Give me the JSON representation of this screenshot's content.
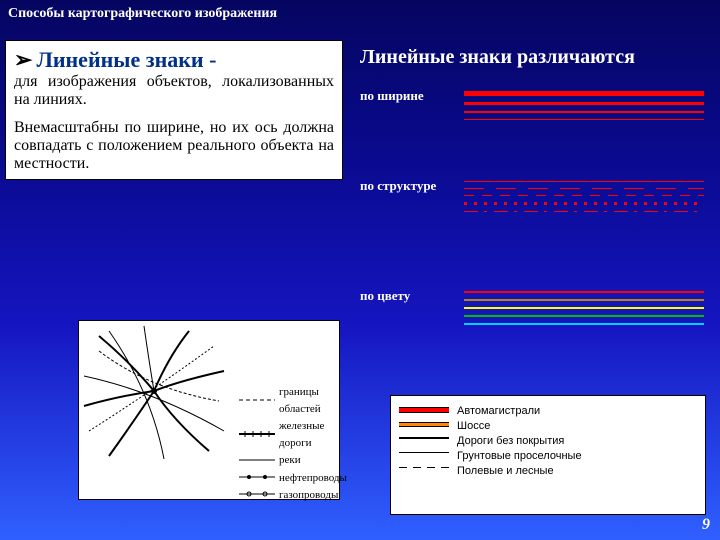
{
  "title": "Способы  картографического изображения",
  "left": {
    "bullet": "➢",
    "heading": "Линейные знаки -",
    "para1": "для изображения объектов, локализованных на линиях.",
    "para2": "Внемасштабны по ширине, но их ось должна совпадать с положением реального объекта на местности."
  },
  "right": {
    "title": "Линейные знаки различаются",
    "groups": {
      "width": {
        "label": "по ширине",
        "lines": [
          {
            "h": 5,
            "bg": "#ff0000",
            "style": "solid"
          },
          {
            "h": 3,
            "bg": "#ff0000",
            "style": "solid"
          },
          {
            "h": 2,
            "bg": "#ff0000",
            "style": "solid"
          },
          {
            "h": 1,
            "bg": "#ff0000",
            "style": "solid"
          }
        ]
      },
      "structure": {
        "label": "по структуре",
        "lines": [
          {
            "h": 1,
            "bg": "#ff0000",
            "style": "solid"
          },
          {
            "h": 1,
            "bg": "#ff0000",
            "style": "dash-long"
          },
          {
            "h": 1,
            "bg": "#ff0000",
            "style": "dash-short"
          },
          {
            "h": 1,
            "bg": "#ff0000",
            "style": "dotted"
          },
          {
            "h": 1,
            "bg": "#ff0000",
            "style": "dash-dot"
          }
        ]
      },
      "color": {
        "label": "по цвету",
        "lines": [
          {
            "h": 2,
            "bg": "#ff0000",
            "style": "solid"
          },
          {
            "h": 2,
            "bg": "#b8860b",
            "style": "solid"
          },
          {
            "h": 2,
            "bg": "#ffff00",
            "style": "solid"
          },
          {
            "h": 2,
            "bg": "#00c000",
            "style": "solid"
          },
          {
            "h": 2,
            "bg": "#00d0ff",
            "style": "solid"
          }
        ]
      }
    }
  },
  "map_legend": {
    "items": [
      {
        "label": "границы областей"
      },
      {
        "label": "железные дороги"
      },
      {
        "label": "реки"
      },
      {
        "label": "нефтепроводы"
      },
      {
        "label": "газопроводы"
      }
    ]
  },
  "road_legend": {
    "items": [
      {
        "label": "Автомагистрали",
        "color": "#ff0000",
        "thick": 4,
        "outline": true
      },
      {
        "label": "Шоссе",
        "color": "#ff8800",
        "thick": 3,
        "outline": true
      },
      {
        "label": "Дороги без покрытия",
        "color": "#000000",
        "thick": 2,
        "outline": false
      },
      {
        "label": "Грунтовые проселочные",
        "color": "#000000",
        "thick": 1,
        "outline": false
      },
      {
        "label": "Полевые и лесные",
        "color": "#000000",
        "thick": 1,
        "outline": false,
        "dashed": true
      }
    ]
  },
  "page_num": "9"
}
